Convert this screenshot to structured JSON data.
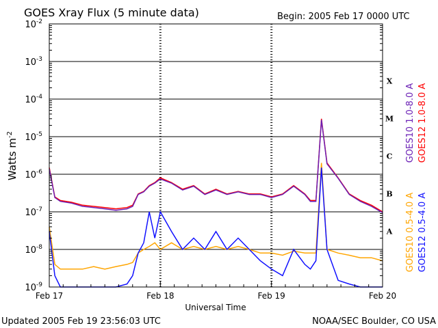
{
  "chart_data": {
    "type": "line",
    "title": "GOES Xray Flux (5 minute data)",
    "begin_label": "Begin:  2005 Feb 17 0000 UTC",
    "ylabel": "Watts m",
    "ylabel_sup": "-2",
    "xlabel": "Universal Time",
    "yscale": "log",
    "ylim": [
      1e-09,
      0.01
    ],
    "xlim": [
      0,
      3
    ],
    "x_unit": "days since 2005 Feb 17 0000 UTC",
    "y_ticks": [
      {
        "base": "10",
        "exp": "-2",
        "value": 0.01
      },
      {
        "base": "10",
        "exp": "-3",
        "value": 0.001
      },
      {
        "base": "10",
        "exp": "-4",
        "value": 0.0001
      },
      {
        "base": "10",
        "exp": "-5",
        "value": 1e-05
      },
      {
        "base": "10",
        "exp": "-6",
        "value": 1e-06
      },
      {
        "base": "10",
        "exp": "-7",
        "value": 1e-07
      },
      {
        "base": "10",
        "exp": "-8",
        "value": 1e-08
      },
      {
        "base": "10",
        "exp": "-9",
        "value": 1e-09
      }
    ],
    "x_ticks": [
      {
        "label": "Feb 17",
        "value": 0
      },
      {
        "label": "Feb 18",
        "value": 1
      },
      {
        "label": "Feb 19",
        "value": 2
      },
      {
        "label": "Feb 20",
        "value": 3
      }
    ],
    "flare_classes": [
      {
        "label": "X",
        "low": 0.0001,
        "high": 0.001
      },
      {
        "label": "M",
        "low": 1e-05,
        "high": 0.0001
      },
      {
        "label": "C",
        "low": 1e-06,
        "high": 1e-05
      },
      {
        "label": "B",
        "low": 1e-07,
        "high": 1e-06
      },
      {
        "label": "A",
        "low": 1e-08,
        "high": 1e-07
      }
    ],
    "series": [
      {
        "name": "GOES12 1.0-8.0 A",
        "color": "#ff0000",
        "x": [
          0,
          0.05,
          0.1,
          0.2,
          0.3,
          0.4,
          0.5,
          0.6,
          0.7,
          0.75,
          0.8,
          0.85,
          0.9,
          0.95,
          1.0,
          1.1,
          1.2,
          1.3,
          1.4,
          1.5,
          1.6,
          1.7,
          1.8,
          1.9,
          2.0,
          2.1,
          2.2,
          2.3,
          2.35,
          2.4,
          2.45,
          2.5,
          2.6,
          2.7,
          2.8,
          2.9,
          3.0
        ],
        "y": [
          1.5e-06,
          2.5e-07,
          2e-07,
          1.8e-07,
          1.5e-07,
          1.4e-07,
          1.3e-07,
          1.2e-07,
          1.3e-07,
          1.5e-07,
          3e-07,
          3.5e-07,
          5e-07,
          6e-07,
          8e-07,
          6e-07,
          4e-07,
          5e-07,
          3e-07,
          4e-07,
          3e-07,
          3.5e-07,
          3e-07,
          3e-07,
          2.5e-07,
          3e-07,
          5e-07,
          3e-07,
          2e-07,
          2e-07,
          3e-05,
          2e-06,
          8e-07,
          3e-07,
          2e-07,
          1.5e-07,
          1e-07
        ]
      },
      {
        "name": "GOES10 1.0-8.0 A",
        "color": "#6a1fb5",
        "x": [
          0,
          0.05,
          0.1,
          0.2,
          0.3,
          0.4,
          0.5,
          0.6,
          0.7,
          0.75,
          0.8,
          0.85,
          0.9,
          0.95,
          1.0,
          1.1,
          1.2,
          1.3,
          1.4,
          1.5,
          1.6,
          1.7,
          1.8,
          1.9,
          2.0,
          2.1,
          2.2,
          2.3,
          2.35,
          2.4,
          2.45,
          2.5,
          2.6,
          2.7,
          2.8,
          2.9,
          3.0
        ],
        "y": [
          1.4e-06,
          2.4e-07,
          1.9e-07,
          1.7e-07,
          1.4e-07,
          1.3e-07,
          1.2e-07,
          1.1e-07,
          1.2e-07,
          1.4e-07,
          2.9e-07,
          3.4e-07,
          4.8e-07,
          5.8e-07,
          7.5e-07,
          5.8e-07,
          3.8e-07,
          4.8e-07,
          2.9e-07,
          3.8e-07,
          2.9e-07,
          3.4e-07,
          2.9e-07,
          2.9e-07,
          2.4e-07,
          2.9e-07,
          4.8e-07,
          2.9e-07,
          1.9e-07,
          1.9e-07,
          2.8e-05,
          1.9e-06,
          7.8e-07,
          2.9e-07,
          1.9e-07,
          1.4e-07,
          9.5e-08
        ]
      },
      {
        "name": "GOES10 0.5-4.0 A",
        "color": "#ffa500",
        "x": [
          0,
          0.05,
          0.1,
          0.2,
          0.3,
          0.4,
          0.5,
          0.6,
          0.7,
          0.75,
          0.8,
          0.85,
          0.9,
          0.95,
          1.0,
          1.1,
          1.2,
          1.3,
          1.4,
          1.5,
          1.6,
          1.7,
          1.8,
          1.9,
          2.0,
          2.1,
          2.2,
          2.3,
          2.35,
          2.4,
          2.45,
          2.5,
          2.6,
          2.7,
          2.8,
          2.9,
          3.0
        ],
        "y": [
          4e-08,
          4e-09,
          3e-09,
          3e-09,
          3e-09,
          3.5e-09,
          3e-09,
          3.5e-09,
          4e-09,
          4.5e-09,
          8e-09,
          1e-08,
          1.2e-08,
          1.5e-08,
          1e-08,
          1.5e-08,
          1e-08,
          1.2e-08,
          1e-08,
          1.2e-08,
          1e-08,
          1.2e-08,
          1e-08,
          8e-09,
          8e-09,
          7e-09,
          9e-09,
          8e-09,
          8e-09,
          8e-09,
          2e-06,
          1e-08,
          8e-09,
          7e-09,
          6e-09,
          6e-09,
          5e-09
        ]
      },
      {
        "name": "GOES12 0.5-4.0 A",
        "color": "#1010ff",
        "x": [
          0,
          0.05,
          0.1,
          0.2,
          0.3,
          0.4,
          0.5,
          0.6,
          0.7,
          0.75,
          0.8,
          0.85,
          0.9,
          0.95,
          1.0,
          1.1,
          1.2,
          1.3,
          1.4,
          1.5,
          1.6,
          1.7,
          1.8,
          1.9,
          2.0,
          2.1,
          2.2,
          2.3,
          2.35,
          2.4,
          2.45,
          2.5,
          2.6,
          2.7,
          2.8,
          2.9,
          3.0
        ],
        "y": [
          3e-08,
          2e-09,
          1e-09,
          1e-09,
          1e-09,
          1e-09,
          1e-09,
          1e-09,
          1.2e-09,
          2e-09,
          8e-09,
          1.5e-08,
          1e-07,
          2e-08,
          1e-07,
          3e-08,
          1e-08,
          2e-08,
          1e-08,
          3e-08,
          1e-08,
          2e-08,
          1e-08,
          5e-09,
          3e-09,
          2e-09,
          1e-08,
          4e-09,
          3e-09,
          5e-09,
          1.5e-06,
          1e-08,
          1.5e-09,
          1.2e-09,
          1e-09,
          1e-09,
          1e-09
        ]
      }
    ],
    "grid": true,
    "footer_left": "Updated 2005 Feb 19 23:56:03 UTC",
    "footer_right": "NOAA/SEC Boulder, CO USA"
  }
}
